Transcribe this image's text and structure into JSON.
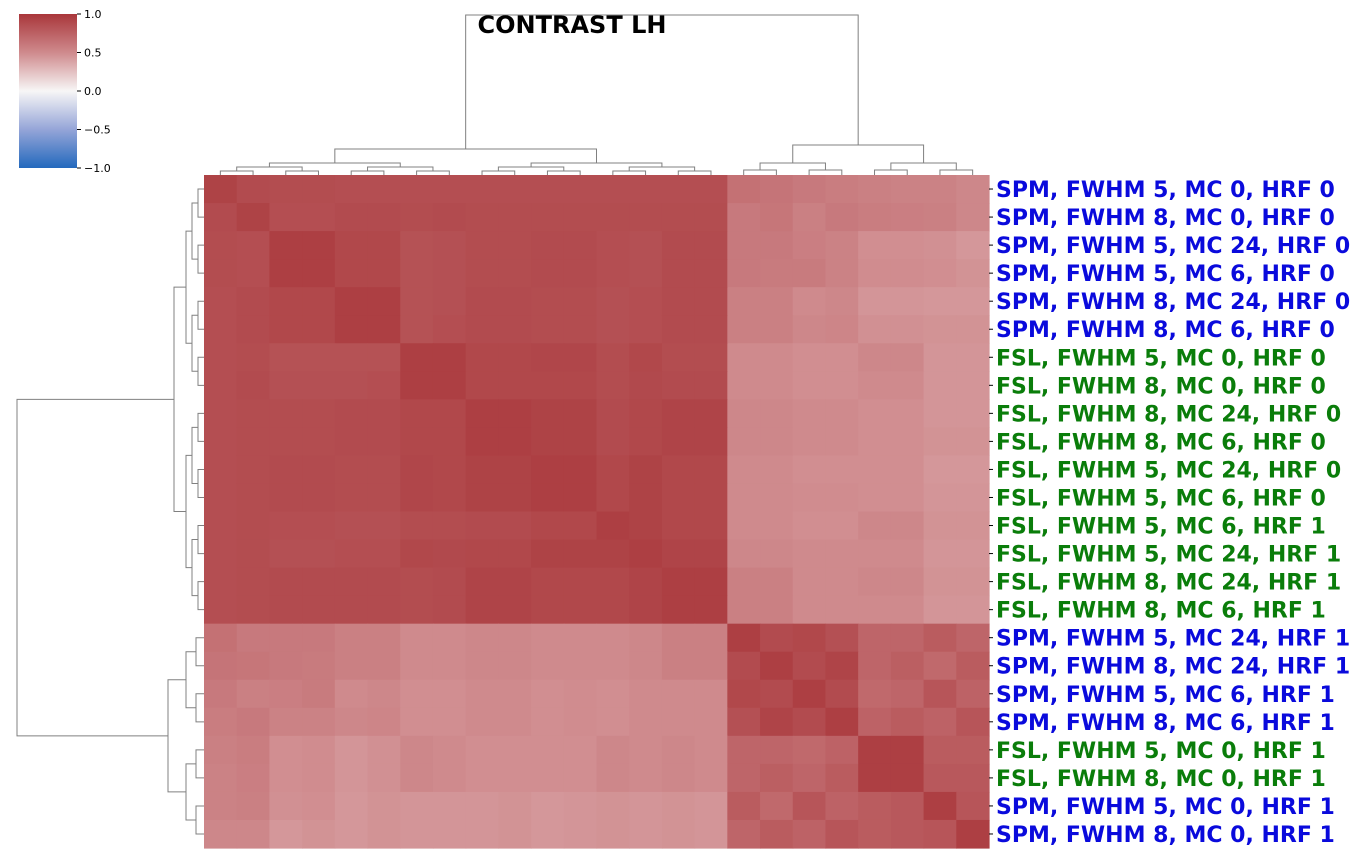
{
  "chart_data": {
    "type": "heatmap",
    "title": "CONTRAST LH",
    "rows": [
      "SPM, FWHM 5, MC 0, HRF 0",
      "SPM, FWHM 8, MC 0, HRF 0",
      "SPM, FWHM 5, MC 24, HRF 0",
      "SPM, FWHM 5, MC 6, HRF 0",
      "SPM, FWHM 8, MC 24, HRF 0",
      "SPM, FWHM 8, MC 6, HRF 0",
      "FSL, FWHM 5, MC 0, HRF 0",
      "FSL, FWHM 8, MC 0, HRF 0",
      "FSL, FWHM 8, MC 24, HRF 0",
      "FSL, FWHM 8, MC 6, HRF 0",
      "FSL, FWHM 5, MC 24, HRF 0",
      "FSL, FWHM 5, MC 6, HRF 0",
      "FSL, FWHM 5, MC 6, HRF 1",
      "FSL, FWHM 5, MC 24, HRF 1",
      "FSL, FWHM 8, MC 24, HRF 1",
      "FSL, FWHM 8, MC 6, HRF 1",
      "SPM, FWHM 5, MC 24, HRF 1",
      "SPM, FWHM 8, MC 24, HRF 1",
      "SPM, FWHM 5, MC 6, HRF 1",
      "SPM, FWHM 8, MC 6, HRF 1",
      "FSL, FWHM 5, MC 0, HRF 1",
      "FSL, FWHM 8, MC 0, HRF 1",
      "SPM, FWHM 5, MC 0, HRF 1",
      "SPM, FWHM 8, MC 0, HRF 1"
    ],
    "row_label_colors": [
      "blue",
      "blue",
      "blue",
      "blue",
      "blue",
      "blue",
      "green",
      "green",
      "green",
      "green",
      "green",
      "green",
      "green",
      "green",
      "green",
      "green",
      "blue",
      "blue",
      "blue",
      "blue",
      "green",
      "green",
      "blue",
      "blue"
    ],
    "label_color_map": {
      "blue": "#0a0adc",
      "green": "#0a7d0a"
    },
    "colorbar": {
      "min": -1.0,
      "max": 1.0,
      "ticks": [
        "1.0",
        "0.5",
        "0.0",
        "−0.5",
        "−1.0"
      ],
      "colormap": "vlag"
    },
    "clusters": {
      "first_block_size": 16,
      "second_block_size": 8
    },
    "values": [
      [
        0.93,
        0.88,
        0.87,
        0.87,
        0.86,
        0.86,
        0.86,
        0.86,
        0.86,
        0.86,
        0.86,
        0.86,
        0.86,
        0.86,
        0.86,
        0.86,
        0.65,
        0.63,
        0.6,
        0.58,
        0.56,
        0.55,
        0.55,
        0.52
      ],
      [
        0.88,
        0.93,
        0.86,
        0.86,
        0.88,
        0.88,
        0.87,
        0.88,
        0.87,
        0.87,
        0.87,
        0.87,
        0.87,
        0.87,
        0.87,
        0.87,
        0.6,
        0.62,
        0.56,
        0.6,
        0.58,
        0.57,
        0.56,
        0.52
      ],
      [
        0.87,
        0.86,
        0.95,
        0.95,
        0.9,
        0.9,
        0.84,
        0.85,
        0.87,
        0.87,
        0.88,
        0.88,
        0.86,
        0.85,
        0.88,
        0.88,
        0.6,
        0.6,
        0.57,
        0.55,
        0.48,
        0.48,
        0.47,
        0.44
      ],
      [
        0.87,
        0.86,
        0.95,
        0.95,
        0.9,
        0.9,
        0.84,
        0.85,
        0.87,
        0.87,
        0.88,
        0.88,
        0.86,
        0.85,
        0.88,
        0.88,
        0.6,
        0.59,
        0.59,
        0.55,
        0.49,
        0.49,
        0.48,
        0.46
      ],
      [
        0.86,
        0.88,
        0.9,
        0.9,
        0.95,
        0.95,
        0.84,
        0.85,
        0.88,
        0.88,
        0.87,
        0.87,
        0.85,
        0.86,
        0.88,
        0.88,
        0.56,
        0.56,
        0.5,
        0.52,
        0.45,
        0.45,
        0.44,
        0.44
      ],
      [
        0.86,
        0.88,
        0.9,
        0.9,
        0.95,
        0.95,
        0.84,
        0.86,
        0.88,
        0.88,
        0.87,
        0.87,
        0.85,
        0.86,
        0.88,
        0.88,
        0.56,
        0.56,
        0.52,
        0.53,
        0.47,
        0.47,
        0.46,
        0.46
      ],
      [
        0.86,
        0.87,
        0.84,
        0.84,
        0.84,
        0.84,
        0.95,
        0.95,
        0.9,
        0.9,
        0.91,
        0.91,
        0.87,
        0.9,
        0.87,
        0.87,
        0.5,
        0.5,
        0.48,
        0.48,
        0.52,
        0.52,
        0.45,
        0.45
      ],
      [
        0.86,
        0.88,
        0.85,
        0.85,
        0.85,
        0.86,
        0.95,
        0.95,
        0.9,
        0.9,
        0.9,
        0.9,
        0.87,
        0.89,
        0.88,
        0.88,
        0.5,
        0.5,
        0.48,
        0.48,
        0.5,
        0.5,
        0.45,
        0.45
      ],
      [
        0.86,
        0.87,
        0.87,
        0.87,
        0.88,
        0.88,
        0.9,
        0.9,
        0.95,
        0.95,
        0.93,
        0.93,
        0.88,
        0.9,
        0.92,
        0.92,
        0.52,
        0.52,
        0.5,
        0.5,
        0.48,
        0.48,
        0.45,
        0.45
      ],
      [
        0.86,
        0.87,
        0.87,
        0.87,
        0.88,
        0.88,
        0.9,
        0.9,
        0.95,
        0.95,
        0.93,
        0.93,
        0.88,
        0.9,
        0.92,
        0.92,
        0.52,
        0.52,
        0.5,
        0.5,
        0.48,
        0.48,
        0.46,
        0.46
      ],
      [
        0.86,
        0.87,
        0.88,
        0.88,
        0.87,
        0.87,
        0.91,
        0.9,
        0.93,
        0.93,
        0.95,
        0.95,
        0.9,
        0.93,
        0.9,
        0.9,
        0.5,
        0.5,
        0.48,
        0.48,
        0.48,
        0.48,
        0.44,
        0.44
      ],
      [
        0.86,
        0.87,
        0.88,
        0.88,
        0.87,
        0.87,
        0.91,
        0.9,
        0.93,
        0.93,
        0.95,
        0.95,
        0.9,
        0.93,
        0.9,
        0.9,
        0.5,
        0.5,
        0.49,
        0.49,
        0.48,
        0.48,
        0.45,
        0.45
      ],
      [
        0.86,
        0.87,
        0.86,
        0.86,
        0.85,
        0.85,
        0.87,
        0.87,
        0.88,
        0.88,
        0.9,
        0.9,
        0.95,
        0.93,
        0.9,
        0.9,
        0.5,
        0.5,
        0.48,
        0.48,
        0.52,
        0.52,
        0.46,
        0.46
      ],
      [
        0.86,
        0.87,
        0.85,
        0.85,
        0.86,
        0.86,
        0.9,
        0.89,
        0.9,
        0.9,
        0.93,
        0.93,
        0.93,
        0.95,
        0.92,
        0.92,
        0.52,
        0.52,
        0.5,
        0.5,
        0.5,
        0.5,
        0.45,
        0.45
      ],
      [
        0.86,
        0.87,
        0.88,
        0.88,
        0.88,
        0.88,
        0.87,
        0.88,
        0.92,
        0.92,
        0.9,
        0.9,
        0.9,
        0.92,
        0.95,
        0.95,
        0.56,
        0.56,
        0.5,
        0.5,
        0.52,
        0.52,
        0.46,
        0.46
      ],
      [
        0.86,
        0.87,
        0.88,
        0.88,
        0.88,
        0.88,
        0.87,
        0.88,
        0.92,
        0.92,
        0.9,
        0.9,
        0.9,
        0.92,
        0.95,
        0.95,
        0.56,
        0.56,
        0.5,
        0.5,
        0.5,
        0.5,
        0.45,
        0.45
      ],
      [
        0.65,
        0.6,
        0.6,
        0.6,
        0.56,
        0.56,
        0.5,
        0.5,
        0.52,
        0.52,
        0.5,
        0.5,
        0.5,
        0.52,
        0.56,
        0.56,
        0.95,
        0.88,
        0.9,
        0.85,
        0.72,
        0.72,
        0.78,
        0.72
      ],
      [
        0.63,
        0.62,
        0.6,
        0.59,
        0.56,
        0.56,
        0.5,
        0.5,
        0.52,
        0.52,
        0.5,
        0.5,
        0.5,
        0.52,
        0.56,
        0.56,
        0.88,
        0.95,
        0.88,
        0.92,
        0.72,
        0.76,
        0.7,
        0.78
      ],
      [
        0.6,
        0.56,
        0.57,
        0.59,
        0.5,
        0.52,
        0.48,
        0.48,
        0.5,
        0.5,
        0.48,
        0.49,
        0.48,
        0.5,
        0.5,
        0.5,
        0.9,
        0.88,
        0.95,
        0.88,
        0.7,
        0.72,
        0.82,
        0.74
      ],
      [
        0.58,
        0.6,
        0.55,
        0.55,
        0.52,
        0.53,
        0.48,
        0.48,
        0.5,
        0.5,
        0.48,
        0.49,
        0.48,
        0.5,
        0.5,
        0.5,
        0.85,
        0.92,
        0.88,
        0.95,
        0.74,
        0.78,
        0.74,
        0.82
      ],
      [
        0.56,
        0.58,
        0.48,
        0.49,
        0.45,
        0.47,
        0.52,
        0.5,
        0.48,
        0.48,
        0.48,
        0.48,
        0.52,
        0.5,
        0.52,
        0.5,
        0.72,
        0.72,
        0.7,
        0.74,
        0.95,
        0.95,
        0.78,
        0.78
      ],
      [
        0.55,
        0.57,
        0.48,
        0.49,
        0.45,
        0.47,
        0.52,
        0.5,
        0.48,
        0.48,
        0.48,
        0.48,
        0.52,
        0.5,
        0.52,
        0.5,
        0.72,
        0.76,
        0.72,
        0.78,
        0.95,
        0.95,
        0.8,
        0.8
      ],
      [
        0.55,
        0.56,
        0.47,
        0.48,
        0.44,
        0.46,
        0.45,
        0.45,
        0.45,
        0.46,
        0.44,
        0.45,
        0.46,
        0.45,
        0.46,
        0.45,
        0.78,
        0.7,
        0.82,
        0.74,
        0.78,
        0.8,
        0.95,
        0.82
      ],
      [
        0.52,
        0.52,
        0.44,
        0.46,
        0.44,
        0.46,
        0.45,
        0.45,
        0.45,
        0.46,
        0.44,
        0.45,
        0.46,
        0.45,
        0.46,
        0.45,
        0.72,
        0.78,
        0.74,
        0.82,
        0.78,
        0.8,
        0.82,
        0.95
      ]
    ]
  }
}
